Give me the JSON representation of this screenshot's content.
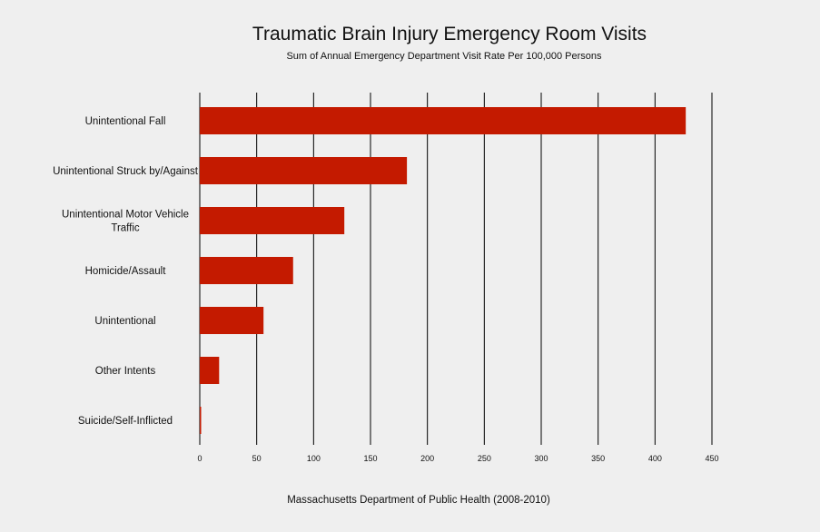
{
  "chart_data": {
    "type": "bar",
    "orientation": "horizontal",
    "title": "Traumatic Brain Injury Emergency Room Visits",
    "subtitle": "Sum of Annual Emergency Department Visit Rate Per 100,000 Persons",
    "source": "Massachusetts Department of Public Health (2008-2010)",
    "categories": [
      [
        "Unintentional Fall"
      ],
      [
        "Unintentional Struck by/Against"
      ],
      [
        "Unintentional Motor Vehicle",
        "Traffic"
      ],
      [
        "Homicide/Assault"
      ],
      [
        "Unintentional"
      ],
      [
        "Other Intents"
      ],
      [
        "Suicide/Self-Inflicted"
      ]
    ],
    "values": [
      427,
      182,
      127,
      82,
      56,
      17,
      1
    ],
    "xlim": [
      0,
      450
    ],
    "xticks": [
      0,
      50,
      100,
      150,
      200,
      250,
      300,
      350,
      400,
      450
    ],
    "grid": true,
    "bar_color": "#c41a00",
    "grid_color": "#000000"
  }
}
